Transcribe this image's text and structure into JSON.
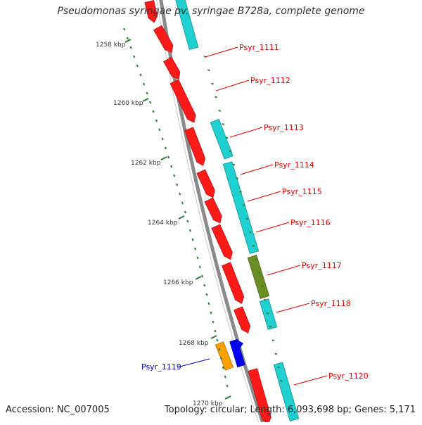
{
  "title": "Pseudomonas syringae pv. syringae B728a, complete genome",
  "footer": {
    "accession": "Accession: NC_007005",
    "topology": "Topology: circular; Length: 6,093,698 bp; Genes: 5,171"
  },
  "colors": {
    "backbone": "#8a8a8a",
    "tick": "#2e7d32",
    "forward_strand": "#ff1a1a",
    "reverse_strand": "#20d0d0",
    "olive": "#6b8e23",
    "orange": "#ffa000",
    "blue": "#0000ee",
    "label_red": "#dd0000",
    "label_blue": "#0000cc"
  },
  "axis_labels": [
    "1258 kbp",
    "1260 kbp",
    "1262 kbp",
    "1264 kbp",
    "1266 kbp",
    "1268 kbp",
    "1270 kbp"
  ],
  "genes": [
    {
      "label": "Psyr_1111",
      "color": "label_red"
    },
    {
      "label": "Psyr_1112",
      "color": "label_red"
    },
    {
      "label": "Psyr_1113",
      "color": "label_red"
    },
    {
      "label": "Psyr_1114",
      "color": "label_red"
    },
    {
      "label": "Psyr_1115",
      "color": "label_red"
    },
    {
      "label": "Psyr_1116",
      "color": "label_red"
    },
    {
      "label": "Psyr_1117",
      "color": "label_red"
    },
    {
      "label": "Psyr_1118",
      "color": "label_red"
    },
    {
      "label": "Psyr_1119",
      "color": "label_blue"
    },
    {
      "label": "Psyr_1120",
      "color": "label_red"
    }
  ]
}
